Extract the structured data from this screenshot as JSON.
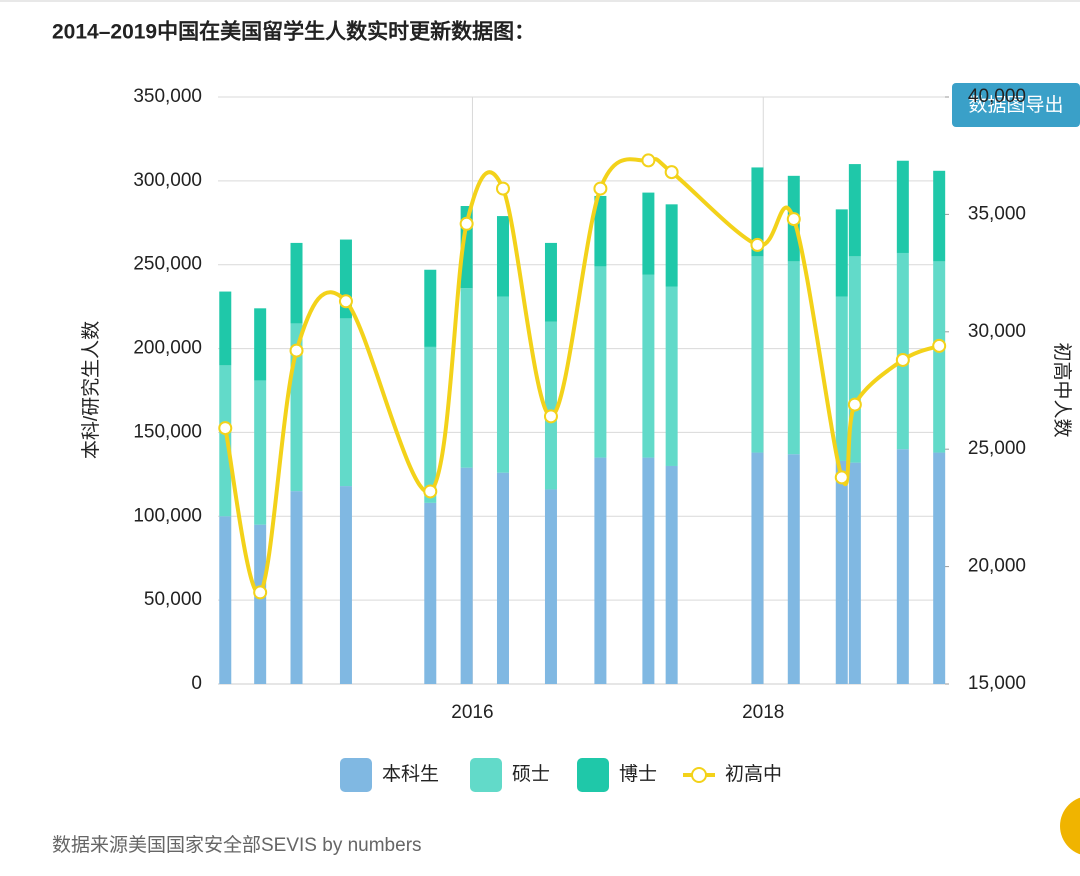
{
  "chart_data": {
    "type": "bar-line",
    "title": "2014–2019中国在美国留学生人数实时更新数据图：",
    "y_label": "本科/研究生人数",
    "y2_label": "初高中人数",
    "x": [
      2014.3,
      2014.54,
      2014.79,
      2015.13,
      2015.71,
      2015.96,
      2016.21,
      2016.54,
      2016.88,
      2017.21,
      2017.37,
      2017.96,
      2018.21,
      2018.54,
      2018.63,
      2018.96,
      2019.21
    ],
    "xlim": [
      2014.25,
      2019.25
    ],
    "xticks": [
      2016,
      2018
    ],
    "ylim": [
      0,
      350000
    ],
    "yticks": [
      0,
      {
        "value": 50000,
        "label": "50,000"
      },
      {
        "value": 100000,
        "label": "100,000"
      },
      {
        "value": 150000,
        "label": "150,000"
      },
      {
        "value": 200000,
        "label": "200,000"
      },
      {
        "value": 250000,
        "label": "250,000"
      },
      {
        "value": 300000,
        "label": "300,000"
      },
      {
        "value": 350000,
        "label": "350,000"
      }
    ],
    "y2lim": [
      15000,
      40000
    ],
    "y2ticks": [
      {
        "value": 15000,
        "label": "15,000"
      },
      {
        "value": 20000,
        "label": "20,000"
      },
      {
        "value": 25000,
        "label": "25,000"
      },
      {
        "value": 30000,
        "label": "30,000"
      },
      {
        "value": 35000,
        "label": "35,000"
      },
      {
        "value": 40000,
        "label": "40,000"
      }
    ],
    "grid": true,
    "series": [
      {
        "name": "本科生",
        "type": "bar",
        "color": "#80b8e2",
        "values": [
          100000,
          95000,
          115000,
          118000,
          108000,
          129000,
          126000,
          116000,
          135000,
          135000,
          130000,
          138000,
          137000,
          133000,
          132000,
          140000,
          138000
        ]
      },
      {
        "name": "硕士",
        "type": "bar",
        "color": "#62dac9",
        "values": [
          90000,
          86000,
          100000,
          100000,
          93000,
          107000,
          105000,
          100000,
          114000,
          109000,
          107000,
          117000,
          115000,
          98000,
          123000,
          117000,
          114000
        ]
      },
      {
        "name": "博士",
        "type": "bar",
        "color": "#1fc8a9",
        "values": [
          44000,
          43000,
          48000,
          47000,
          46000,
          49000,
          48000,
          47000,
          42000,
          49000,
          49000,
          53000,
          51000,
          52000,
          55000,
          55000,
          54000
        ]
      },
      {
        "name": "初高中",
        "type": "line",
        "axis": "y2",
        "color": "#f3d21a",
        "values": [
          25900,
          18900,
          29200,
          31300,
          23200,
          34600,
          36100,
          26400,
          36100,
          37300,
          36800,
          33700,
          34800,
          23800,
          26900,
          28800,
          29400
        ]
      }
    ]
  },
  "export_button": "数据图导出",
  "source": "数据来源美国国家安全部SEVIS by numbers"
}
